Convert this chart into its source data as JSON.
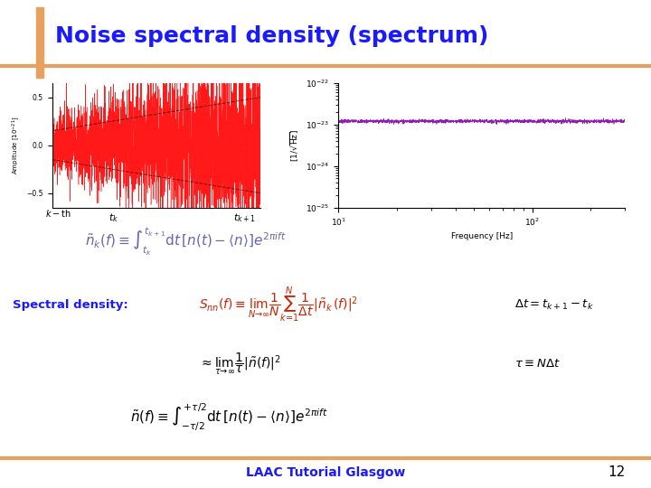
{
  "title": "Noise spectral density (spectrum)",
  "title_color": "#1a1aff",
  "background_color": "#ffffff",
  "footer_text": "LAAC Tutorial Glasgow",
  "footer_color": "#1a1aff",
  "page_number": "12",
  "accent_color_orange": "#e8a060",
  "accent_color_blue": "#1a1aff",
  "formula1_color": "#6666aa",
  "formula2_color": "#cc2200"
}
